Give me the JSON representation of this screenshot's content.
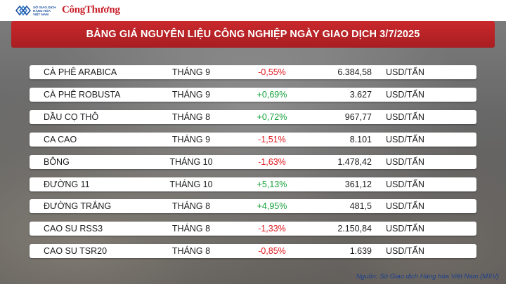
{
  "header": {
    "mxv_logo_text": "SỞ GIAO DỊCH HÀNG HÓA VIỆT NAM",
    "publisher_logo_text": "CôngThương",
    "title": "BẢNG GIÁ NGUYÊN LIỆU CÔNG NGHIỆP NGÀY GIAO DỊCH 3/7/2025"
  },
  "colors": {
    "title_bar": "#b8242a",
    "negative": "#e0191f",
    "positive": "#15a13a",
    "source_text": "#1d3f8c"
  },
  "table": {
    "rows": [
      {
        "name": "CÀ PHÊ ARABICA",
        "month": "THÁNG 9",
        "change": "-0,55%",
        "direction": "down",
        "price": "6.384,58",
        "unit": "USD/TẤN"
      },
      {
        "name": "CÀ PHÊ ROBUSTA",
        "month": "THÁNG 9",
        "change": "+0,69%",
        "direction": "up",
        "price": "3.627",
        "unit": "USD/TẤN"
      },
      {
        "name": "DẦU CỌ THÔ",
        "month": "THÁNG 8",
        "change": "+0,72%",
        "direction": "up",
        "price": "967,77",
        "unit": "USD/TẤN"
      },
      {
        "name": "CA CAO",
        "month": "THÁNG 9",
        "change": "-1,51%",
        "direction": "down",
        "price": "8.101",
        "unit": "USD/TẤN"
      },
      {
        "name": "BÔNG",
        "month": "THÁNG 10",
        "change": "-1,63%",
        "direction": "down",
        "price": "1.478,42",
        "unit": "USD/TẤN"
      },
      {
        "name": "ĐƯỜNG 11",
        "month": "THÁNG 10",
        "change": "+5,13%",
        "direction": "up",
        "price": "361,12",
        "unit": "USD/TẤN"
      },
      {
        "name": "ĐƯỜNG TRẮNG",
        "month": "THÁNG 8",
        "change": "+4,95%",
        "direction": "up",
        "price": "481,5",
        "unit": "USD/TẤN"
      },
      {
        "name": "CAO SU RSS3",
        "month": "THÁNG 8",
        "change": "-1,33%",
        "direction": "down",
        "price": "2.150,84",
        "unit": "USD/TẤN"
      },
      {
        "name": "CAO SU TSR20",
        "month": "THÁNG 8",
        "change": "-0,85%",
        "direction": "down",
        "price": "1.639",
        "unit": "USD/TẤN"
      }
    ]
  },
  "footer": {
    "source": "Nguồn: Sở Giao dịch Hàng hóa Việt Nam (MXV)"
  }
}
